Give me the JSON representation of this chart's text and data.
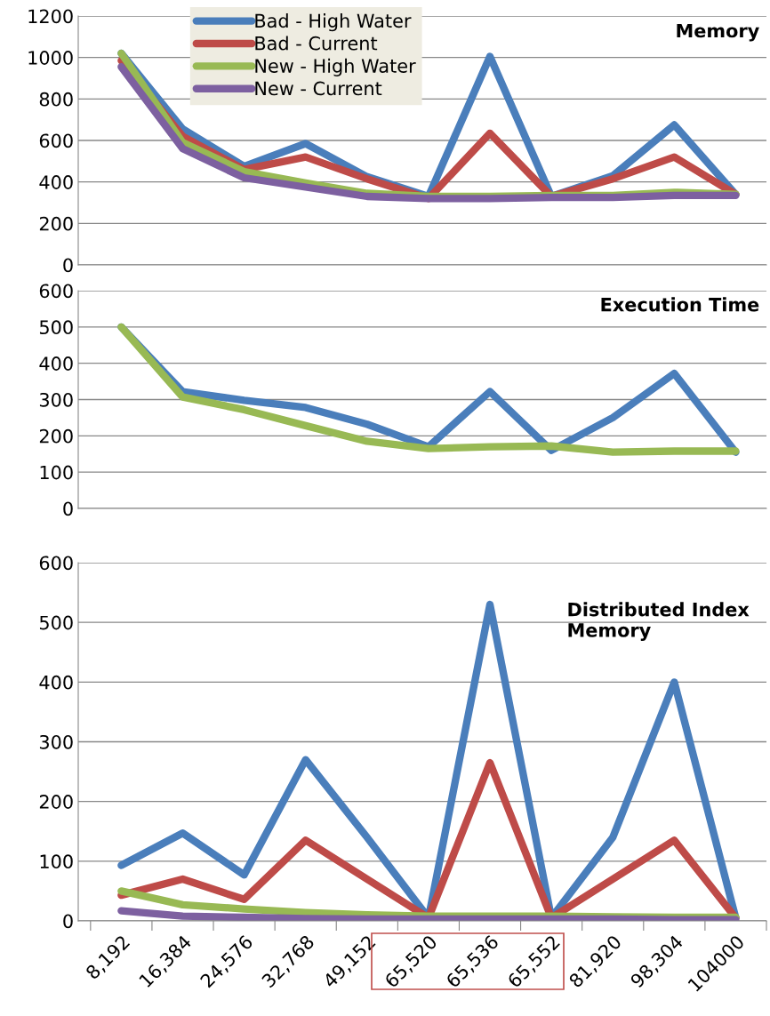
{
  "chart_data": [
    {
      "type": "line",
      "title": "Memory",
      "categories": [
        "8,192",
        "16,384",
        "24,576",
        "32,768",
        "49,152",
        "65,520",
        "65,536",
        "65,552",
        "81,920",
        "98,304",
        "104000"
      ],
      "ylim": [
        0,
        1200
      ],
      "yticks": [
        0,
        200,
        400,
        600,
        800,
        1000,
        1200
      ],
      "grid": "y",
      "legend": "upper left",
      "tick_labels": "y",
      "marker": "none",
      "series": [
        {
          "name": "Bad - High Water",
          "color": "#4a7ebb",
          "values": [
            1020,
            655,
            475,
            585,
            425,
            330,
            1005,
            330,
            430,
            675,
            340
          ]
        },
        {
          "name": "Bad - Current",
          "color": "#be4b48",
          "values": [
            985,
            620,
            460,
            520,
            415,
            320,
            635,
            330,
            415,
            520,
            340
          ]
        },
        {
          "name": "New - High Water",
          "color": "#98b954",
          "values": [
            1020,
            590,
            450,
            395,
            345,
            330,
            330,
            335,
            335,
            350,
            340
          ]
        },
        {
          "name": "New - Current",
          "color": "#7d60a0",
          "values": [
            955,
            560,
            420,
            375,
            330,
            320,
            320,
            325,
            325,
            335,
            335
          ]
        }
      ]
    },
    {
      "type": "line",
      "title": "Execution Time",
      "categories": [
        "8,192",
        "16,384",
        "24,576",
        "32,768",
        "49,152",
        "65,520",
        "65,536",
        "65,552",
        "81,920",
        "98,304",
        "104000"
      ],
      "ylim": [
        0,
        600
      ],
      "yticks": [
        0,
        100,
        200,
        300,
        400,
        500,
        600
      ],
      "grid": "y",
      "tick_labels": "y",
      "marker": "none",
      "series": [
        {
          "color": "#4a7ebb",
          "values": [
            500,
            322,
            298,
            278,
            232,
            170,
            322,
            160,
            250,
            372,
            155
          ]
        },
        {
          "color": "#98b954",
          "values": [
            500,
            307,
            272,
            228,
            185,
            165,
            170,
            172,
            155,
            158,
            158
          ]
        }
      ]
    },
    {
      "type": "line",
      "title": "Distributed Index\nMemory",
      "categories": [
        "8,192",
        "16,384",
        "24,576",
        "32,768",
        "49,152",
        "65,520",
        "65,536",
        "65,552",
        "81,920",
        "98,304",
        "104000"
      ],
      "ylim": [
        0,
        600
      ],
      "yticks": [
        0,
        100,
        200,
        300,
        400,
        500,
        600
      ],
      "grid": "y",
      "marker": "none",
      "series": [
        {
          "color": "#4a7ebb",
          "values": [
            93,
            147,
            77,
            270,
            140,
            5,
            530,
            5,
            140,
            400,
            5
          ]
        },
        {
          "color": "#be4b48",
          "values": [
            43,
            70,
            36,
            135,
            70,
            5,
            265,
            5,
            70,
            135,
            5
          ]
        },
        {
          "color": "#98b954",
          "values": [
            50,
            27,
            20,
            14,
            10,
            8,
            8,
            8,
            7,
            6,
            6
          ]
        },
        {
          "color": "#7d60a0",
          "values": [
            17,
            8,
            6,
            4,
            3,
            3,
            3,
            3,
            3,
            2,
            2
          ]
        }
      ]
    }
  ]
}
